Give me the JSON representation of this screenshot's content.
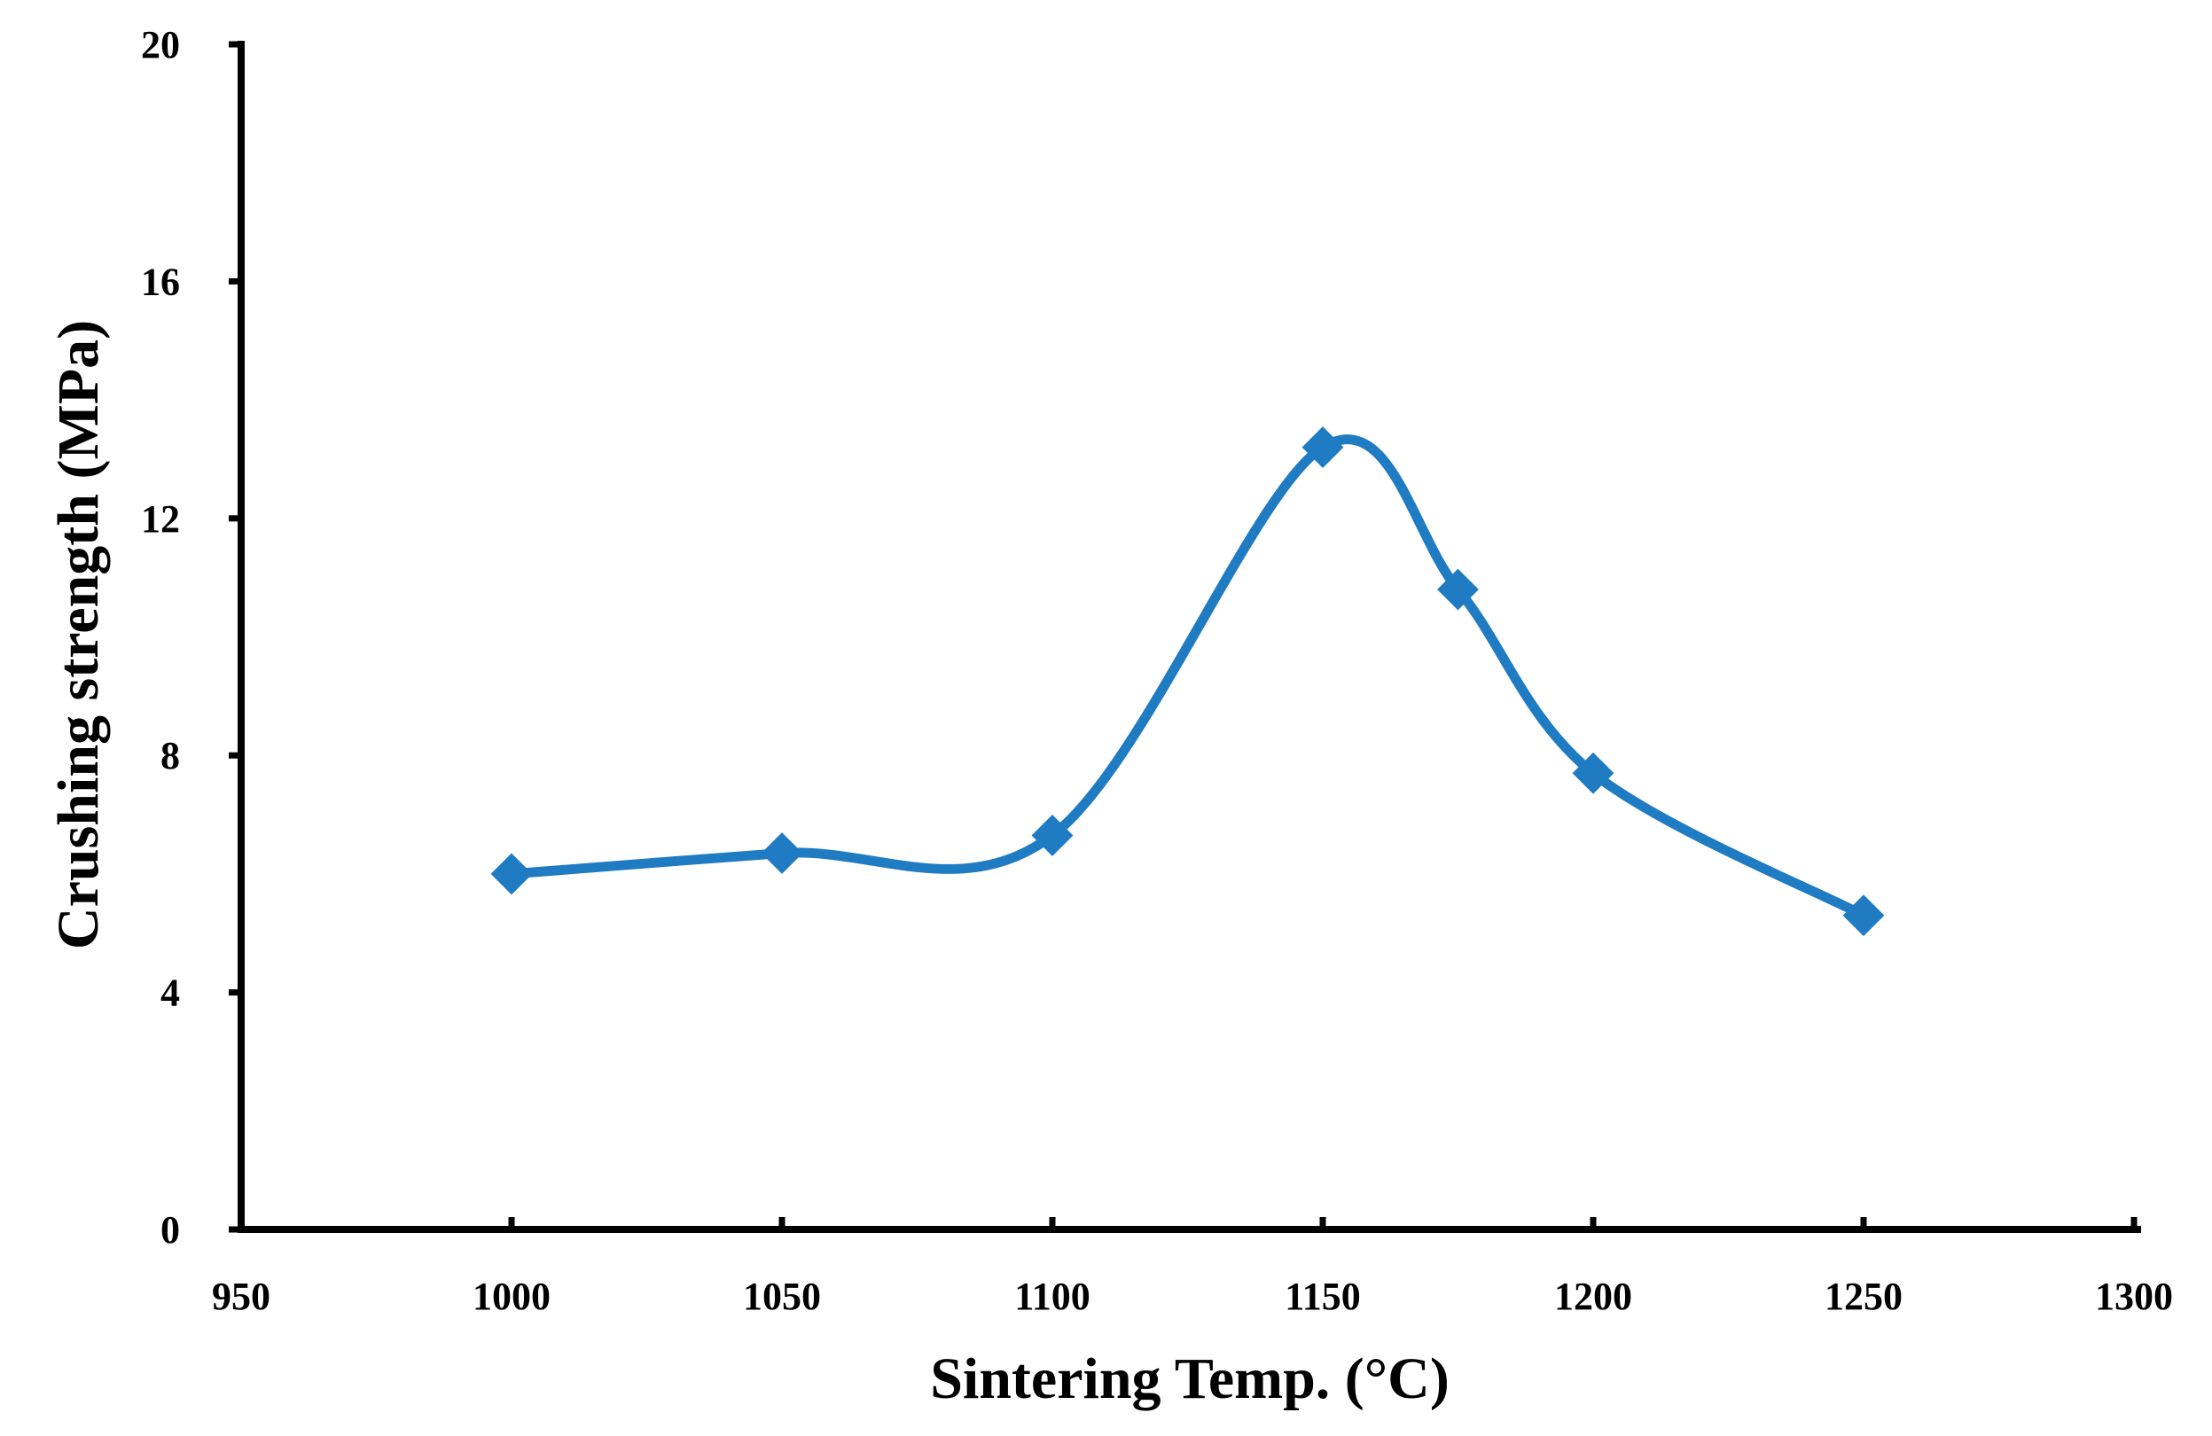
{
  "chart_data": {
    "type": "line",
    "title": "",
    "xlabel": "Sintering Temp. (°C)",
    "ylabel": "Crushing strength (MPa)",
    "xlim": [
      950,
      1300
    ],
    "ylim": [
      0,
      20
    ],
    "xticks": [
      950,
      1000,
      1050,
      1100,
      1150,
      1200,
      1250,
      1300
    ],
    "yticks": [
      0,
      4,
      8,
      12,
      16,
      20
    ],
    "grid": false,
    "legend": "none",
    "smooth": true,
    "series": [
      {
        "name": "Crushing strength",
        "color": "#1f7bc2",
        "marker": "diamond",
        "x": [
          1000,
          1050,
          1100,
          1150,
          1175,
          1200,
          1250
        ],
        "y": [
          6.0,
          6.35,
          6.65,
          13.2,
          10.8,
          7.7,
          5.3
        ]
      }
    ]
  }
}
